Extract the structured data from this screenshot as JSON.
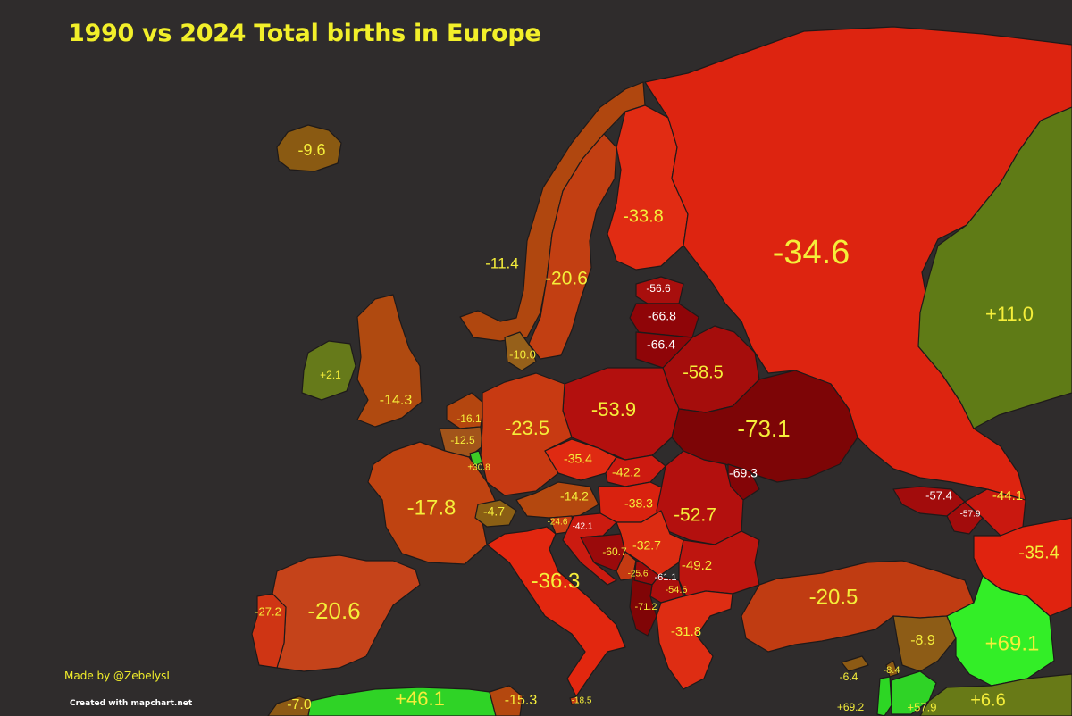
{
  "title": "1990 vs 2024 Total births in Europe",
  "credit": "Made by @ZebelysL",
  "watermark": "Created with mapchart.net",
  "colors": {
    "sea": "#2f2c2c",
    "label_yellow": "#f5ee3a",
    "label_white": "#ffffff",
    "border": "#1e1a1a"
  },
  "regions": [
    {
      "name": "Iceland",
      "value": "-9.6",
      "fill": "#8a5a12"
    },
    {
      "name": "Norway",
      "value": "-11.4",
      "fill": "#b0470f"
    },
    {
      "name": "Sweden",
      "value": "-20.6",
      "fill": "#c23f12"
    },
    {
      "name": "Finland",
      "value": "-33.8",
      "fill": "#e12c13"
    },
    {
      "name": "Russia",
      "value": "-34.6",
      "fill": "#dd2410"
    },
    {
      "name": "Kazakhstan",
      "value": "+11.0",
      "fill": "#5f7b16"
    },
    {
      "name": "Ireland",
      "value": "+2.1",
      "fill": "#667a1a"
    },
    {
      "name": "United Kingdom",
      "value": "-14.3",
      "fill": "#b04a10"
    },
    {
      "name": "Denmark",
      "value": "-10.0",
      "fill": "#96601a"
    },
    {
      "name": "Estonia",
      "value": "-56.6",
      "fill": "#a80f0d"
    },
    {
      "name": "Latvia",
      "value": "-66.8",
      "fill": "#8f0508"
    },
    {
      "name": "Lithuania",
      "value": "-66.4",
      "fill": "#8f0508"
    },
    {
      "name": "Belarus",
      "value": "-58.5",
      "fill": "#a50d0c"
    },
    {
      "name": "Poland",
      "value": "-53.9",
      "fill": "#b3100e"
    },
    {
      "name": "Ukraine",
      "value": "-73.1",
      "fill": "#7d0506"
    },
    {
      "name": "Netherlands",
      "value": "-16.1",
      "fill": "#b4460f"
    },
    {
      "name": "Belgium",
      "value": "-12.5",
      "fill": "#a2541a"
    },
    {
      "name": "Luxembourg",
      "value": "+30.8",
      "fill": "#3dcc26"
    },
    {
      "name": "Germany",
      "value": "-23.5",
      "fill": "#c83a12"
    },
    {
      "name": "Czechia",
      "value": "-35.4",
      "fill": "#df2a12"
    },
    {
      "name": "Slovakia",
      "value": "-42.2",
      "fill": "#cd1a10"
    },
    {
      "name": "Moldova",
      "value": "-69.3",
      "fill": "#840507"
    },
    {
      "name": "France",
      "value": "-17.8",
      "fill": "#bf4311"
    },
    {
      "name": "Switzerland",
      "value": "-4.7",
      "fill": "#8b5f14"
    },
    {
      "name": "Austria",
      "value": "-14.2",
      "fill": "#b4480f"
    },
    {
      "name": "Hungary",
      "value": "-38.3",
      "fill": "#d9220f"
    },
    {
      "name": "Romania",
      "value": "-52.7",
      "fill": "#b3100e"
    },
    {
      "name": "Slovenia",
      "value": "-24.6",
      "fill": "#c63c12"
    },
    {
      "name": "Croatia",
      "value": "-42.1",
      "fill": "#cb1b10"
    },
    {
      "name": "Bosnia and Herzegovina",
      "value": "-60.7",
      "fill": "#9a0a0b"
    },
    {
      "name": "Serbia",
      "value": "-32.7",
      "fill": "#dc2c12"
    },
    {
      "name": "Montenegro",
      "value": "-25.6",
      "fill": "#c43a12"
    },
    {
      "name": "Kosovo",
      "value": "-61.1",
      "fill": "#980a0b"
    },
    {
      "name": "North Macedonia",
      "value": "-54.6",
      "fill": "#a90e0d"
    },
    {
      "name": "Albania",
      "value": "-71.2",
      "fill": "#800506"
    },
    {
      "name": "Bulgaria",
      "value": "-49.2",
      "fill": "#be150f"
    },
    {
      "name": "Greece",
      "value": "-31.8",
      "fill": "#de2d13"
    },
    {
      "name": "Italy",
      "value": "-36.3",
      "fill": "#e2270f"
    },
    {
      "name": "Spain",
      "value": "-20.6",
      "fill": "#c5431a"
    },
    {
      "name": "Portugal",
      "value": "-27.2",
      "fill": "#cf3514"
    },
    {
      "name": "Turkey",
      "value": "-20.5",
      "fill": "#c03c12"
    },
    {
      "name": "Georgia",
      "value": "-57.4",
      "fill": "#a20c0c"
    },
    {
      "name": "Armenia",
      "value": "-57.9",
      "fill": "#a20c0c"
    },
    {
      "name": "Azerbaijan",
      "value": "-44.1",
      "fill": "#c9180f"
    },
    {
      "name": "Iran",
      "value": "-35.4",
      "fill": "#e0230f"
    },
    {
      "name": "Syria",
      "value": "-8.9",
      "fill": "#8d5c16"
    },
    {
      "name": "Iraq",
      "value": "+69.1",
      "fill": "#33ee27"
    },
    {
      "name": "Cyprus",
      "value": "-6.4",
      "fill": "#8c5a14"
    },
    {
      "name": "Lebanon",
      "value": "-8.4",
      "fill": "#8c5a14"
    },
    {
      "name": "Israel",
      "value": "+69.2",
      "fill": "#2dd624"
    },
    {
      "name": "Jordan",
      "value": "+57.9",
      "fill": "#2fd326"
    },
    {
      "name": "Saudi Arabia",
      "value": "+6.6",
      "fill": "#687a17"
    },
    {
      "name": "Morocco",
      "value": "-7.0",
      "fill": "#8d5a15"
    },
    {
      "name": "Algeria",
      "value": "+46.1",
      "fill": "#2fd326"
    },
    {
      "name": "Tunisia",
      "value": "-15.3",
      "fill": "#b4480f"
    },
    {
      "name": "Malta",
      "value": "-18.5",
      "fill": "#c44012"
    }
  ]
}
